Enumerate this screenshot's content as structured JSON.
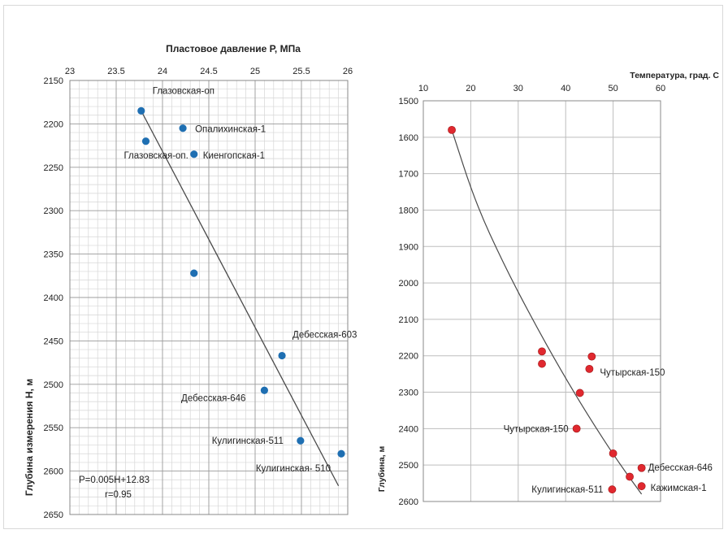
{
  "chart_data": [
    {
      "type": "scatter",
      "xlabel": "Пластовое давление Р, МПа",
      "ylabel": "Глубина измерения H, м",
      "xlim": [
        23,
        26
      ],
      "ylim": [
        2150,
        2650
      ],
      "y_inverted": true,
      "x_axis_position": "top",
      "x_ticks": [
        "23",
        "23.5",
        "24",
        "24.5",
        "25",
        "25.5",
        "26"
      ],
      "y_ticks": [
        "2150",
        "2200",
        "2250",
        "2300",
        "2350",
        "2400",
        "2450",
        "2500",
        "2550",
        "2600",
        "2650"
      ],
      "grid": true,
      "marker_color": "#1f6fb2",
      "points": [
        {
          "x": 23.77,
          "y": 2185,
          "label": "Глазовская-оп"
        },
        {
          "x": 24.22,
          "y": 2205,
          "label": "Опалихинская-1"
        },
        {
          "x": 23.82,
          "y": 2220,
          "label": "Глазовская-оп."
        },
        {
          "x": 24.34,
          "y": 2235,
          "label": "Киенгопская-1"
        },
        {
          "x": 24.34,
          "y": 2372,
          "label": ""
        },
        {
          "x": 25.29,
          "y": 2467,
          "label": "Дебесская-603"
        },
        {
          "x": 25.1,
          "y": 2507,
          "label": "Дебесская-646"
        },
        {
          "x": 25.49,
          "y": 2565,
          "label": "Кулигинская-511"
        },
        {
          "x": 25.93,
          "y": 2580,
          "label": "Кулигинская- 510"
        }
      ],
      "trendline": {
        "type": "linear",
        "from": {
          "x": 23.77,
          "y": 2185
        },
        "to": {
          "x": 25.9,
          "y": 2617
        }
      },
      "annotations": [
        "P=0.005H+12.83",
        "r=0.95"
      ]
    },
    {
      "type": "scatter",
      "xlabel": "Температура, град. С",
      "ylabel": "Глубина, м",
      "xlim": [
        10,
        60
      ],
      "ylim": [
        1500,
        2600
      ],
      "y_inverted": true,
      "x_axis_position": "top",
      "x_ticks": [
        "10",
        "20",
        "30",
        "40",
        "50",
        "60"
      ],
      "y_ticks": [
        "1500",
        "1600",
        "1700",
        "1800",
        "1900",
        "2000",
        "2100",
        "2200",
        "2300",
        "2400",
        "2500",
        "2600"
      ],
      "grid": true,
      "marker_color": "#e0282f",
      "points": [
        {
          "x": 16,
          "y": 1580,
          "label": ""
        },
        {
          "x": 35,
          "y": 2188,
          "label": ""
        },
        {
          "x": 35,
          "y": 2222,
          "label": ""
        },
        {
          "x": 45.5,
          "y": 2202,
          "label": ""
        },
        {
          "x": 45,
          "y": 2236,
          "label": "Чутырская-150"
        },
        {
          "x": 43,
          "y": 2302,
          "label": ""
        },
        {
          "x": 42.3,
          "y": 2400,
          "label": "Чутырская-150"
        },
        {
          "x": 50,
          "y": 2468,
          "label": ""
        },
        {
          "x": 56,
          "y": 2508,
          "label": "Дебесская-646"
        },
        {
          "x": 53.5,
          "y": 2532,
          "label": ""
        },
        {
          "x": 56,
          "y": 2558,
          "label": "Кажимская-1"
        },
        {
          "x": 49.8,
          "y": 2567,
          "label": "Кулигинская-511"
        }
      ],
      "trendline": {
        "type": "curve",
        "points": [
          [
            16,
            1580
          ],
          [
            21,
            1780
          ],
          [
            27,
            1950
          ],
          [
            33,
            2100
          ],
          [
            39,
            2240
          ],
          [
            45,
            2370
          ],
          [
            51,
            2490
          ],
          [
            56,
            2580
          ]
        ]
      }
    }
  ]
}
